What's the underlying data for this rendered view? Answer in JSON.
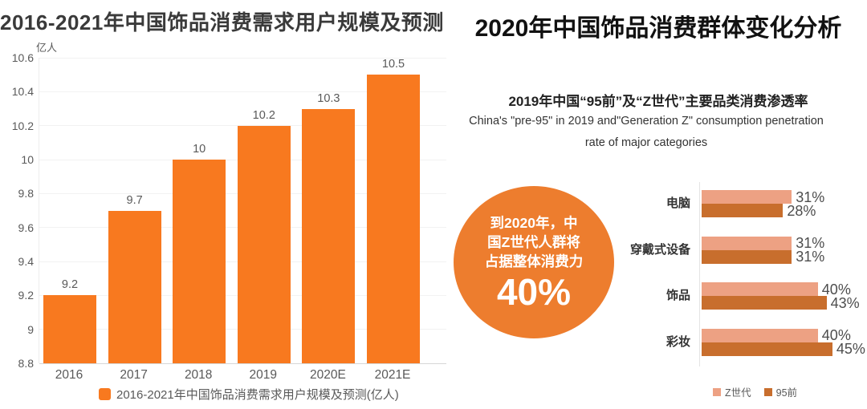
{
  "left_chart": {
    "title": "2016-2021年中国饰品消费需求用户规模及预测",
    "unit": "亿人",
    "legend": "2016-2021年中国饰品消费需求用户规模及预测(亿人)"
  },
  "right_panel": {
    "title": "2020年中国饰品消费群体变化分析",
    "subtitle_cn": "2019年中国“95前”及“Z世代”主要品类消费渗透率",
    "subtitle_en_line1": "China's \"pre-95\" in 2019 and\"Generation Z\" consumption penetration",
    "subtitle_en_line2": "rate of major categories",
    "circle": {
      "line1": "到2020年，中",
      "line2": "国Z世代人群将",
      "line3": "占据整体消费力",
      "value": "40%"
    },
    "legend": {
      "gen_z": "Z世代",
      "pre_95": "95前"
    }
  },
  "colors": {
    "left_bar": "#F8791F",
    "circle_bg": "#ED7D2E",
    "gen_z_bar": "#EDA183",
    "pre_95_bar": "#C86E2D"
  },
  "chart_data": [
    {
      "type": "bar",
      "title": "2016-2021年中国饰品消费需求用户规模及预测",
      "categories": [
        "2016",
        "2017",
        "2018",
        "2019",
        "2020E",
        "2021E"
      ],
      "values": [
        9.2,
        9.7,
        10,
        10.2,
        10.3,
        10.5
      ],
      "value_labels": [
        "9.2",
        "9.7",
        "10",
        "10.2",
        "10.3",
        "10.5"
      ],
      "xlabel": "",
      "ylabel": "亿人",
      "ylim": [
        8.8,
        10.6
      ],
      "yticks": [
        "10.6",
        "10.4",
        "10.2",
        "10",
        "9.8",
        "9.6",
        "9.4",
        "9.2",
        "9",
        "8.8"
      ],
      "grid": true,
      "legend_position": "bottom",
      "legend": [
        "2016-2021年中国饰品消费需求用户规模及预测(亿人)"
      ],
      "bar_color": "#F8791F"
    },
    {
      "type": "bar-horizontal",
      "title": "2019年中国“95前”及“Z世代”主要品类消费渗透率",
      "categories": [
        "电脑",
        "穿戴式设备",
        "饰品",
        "彩妆"
      ],
      "series": [
        {
          "name": "Z世代",
          "color": "#EDA183",
          "values": [
            31,
            31,
            40,
            40
          ]
        },
        {
          "name": "95前",
          "color": "#C86E2D",
          "values": [
            28,
            31,
            43,
            45
          ]
        }
      ],
      "value_suffix": "%",
      "xlim": [
        0,
        47
      ],
      "grid": false,
      "legend_position": "bottom-right",
      "annotation": "到2020年，中国Z世代人群将占据整体消费力 40%"
    }
  ]
}
